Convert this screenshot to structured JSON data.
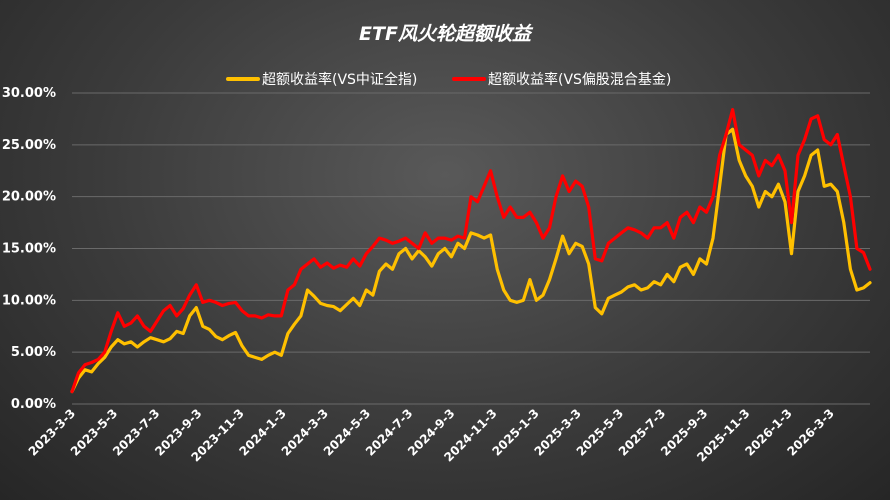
{
  "chart_data": {
    "type": "line",
    "title": "ETF风火轮超额收益",
    "xlabel": "",
    "ylabel": "",
    "ylim": [
      0,
      0.3
    ],
    "y_ticks": [
      "0.00%",
      "5.00%",
      "10.00%",
      "15.00%",
      "20.00%",
      "25.00%",
      "30.00%"
    ],
    "x_ticks": [
      "2023-3-3",
      "2023-5-3",
      "2023-7-3",
      "2023-9-3",
      "2023-11-3",
      "2024-1-3",
      "2024-3-3",
      "2024-5-3",
      "2024-7-3",
      "2024-9-3",
      "2024-11-3",
      "2025-1-3",
      "2025-3-3",
      "2025-5-3",
      "2025-7-3",
      "2025-9-3",
      "2025-11-3",
      "2026-1-3",
      "2026-3-3"
    ],
    "grid": true,
    "legend_position": "top",
    "series": [
      {
        "name": "超额收益率(VS中证全指)",
        "color": "#FFC000",
        "points": [
          [
            0,
            0.012
          ],
          [
            1,
            0.025
          ],
          [
            2,
            0.033
          ],
          [
            3,
            0.031
          ],
          [
            4,
            0.039
          ],
          [
            5,
            0.045
          ],
          [
            6,
            0.055
          ],
          [
            7,
            0.062
          ],
          [
            8,
            0.058
          ],
          [
            9,
            0.06
          ],
          [
            10,
            0.055
          ],
          [
            11,
            0.06
          ],
          [
            12,
            0.064
          ],
          [
            13,
            0.062
          ],
          [
            14,
            0.06
          ],
          [
            15,
            0.063
          ],
          [
            16,
            0.07
          ],
          [
            17,
            0.068
          ],
          [
            18,
            0.085
          ],
          [
            19,
            0.093
          ],
          [
            20,
            0.075
          ],
          [
            21,
            0.072
          ],
          [
            22,
            0.065
          ],
          [
            23,
            0.062
          ],
          [
            24,
            0.066
          ],
          [
            25,
            0.069
          ],
          [
            26,
            0.056
          ],
          [
            27,
            0.047
          ],
          [
            28,
            0.045
          ],
          [
            29,
            0.043
          ],
          [
            30,
            0.047
          ],
          [
            31,
            0.05
          ],
          [
            32,
            0.047
          ],
          [
            33,
            0.068
          ],
          [
            34,
            0.077
          ],
          [
            35,
            0.085
          ],
          [
            36,
            0.11
          ],
          [
            37,
            0.104
          ],
          [
            38,
            0.097
          ],
          [
            39,
            0.095
          ],
          [
            40,
            0.094
          ],
          [
            41,
            0.09
          ],
          [
            42,
            0.096
          ],
          [
            43,
            0.102
          ],
          [
            44,
            0.095
          ],
          [
            45,
            0.11
          ],
          [
            46,
            0.105
          ],
          [
            47,
            0.128
          ],
          [
            48,
            0.135
          ],
          [
            49,
            0.13
          ],
          [
            50,
            0.145
          ],
          [
            51,
            0.15
          ],
          [
            52,
            0.14
          ],
          [
            53,
            0.148
          ],
          [
            54,
            0.142
          ],
          [
            55,
            0.133
          ],
          [
            56,
            0.145
          ],
          [
            57,
            0.15
          ],
          [
            58,
            0.142
          ],
          [
            59,
            0.155
          ],
          [
            60,
            0.15
          ],
          [
            61,
            0.165
          ],
          [
            62,
            0.163
          ],
          [
            63,
            0.16
          ],
          [
            64,
            0.163
          ],
          [
            65,
            0.13
          ],
          [
            66,
            0.11
          ],
          [
            67,
            0.1
          ],
          [
            68,
            0.098
          ],
          [
            69,
            0.1
          ],
          [
            70,
            0.12
          ],
          [
            71,
            0.1
          ],
          [
            72,
            0.105
          ],
          [
            73,
            0.12
          ],
          [
            74,
            0.14
          ],
          [
            75,
            0.162
          ],
          [
            76,
            0.145
          ],
          [
            77,
            0.155
          ],
          [
            78,
            0.152
          ],
          [
            79,
            0.135
          ],
          [
            80,
            0.093
          ],
          [
            81,
            0.087
          ],
          [
            82,
            0.102
          ],
          [
            83,
            0.105
          ],
          [
            84,
            0.108
          ],
          [
            85,
            0.113
          ],
          [
            86,
            0.115
          ],
          [
            87,
            0.11
          ],
          [
            88,
            0.112
          ],
          [
            89,
            0.118
          ],
          [
            90,
            0.115
          ],
          [
            91,
            0.125
          ],
          [
            92,
            0.118
          ],
          [
            93,
            0.132
          ],
          [
            94,
            0.135
          ],
          [
            95,
            0.125
          ],
          [
            96,
            0.14
          ],
          [
            97,
            0.135
          ],
          [
            98,
            0.16
          ],
          [
            99,
            0.21
          ],
          [
            100,
            0.26
          ],
          [
            101,
            0.265
          ],
          [
            102,
            0.235
          ],
          [
            103,
            0.22
          ],
          [
            104,
            0.21
          ],
          [
            105,
            0.19
          ],
          [
            106,
            0.205
          ],
          [
            107,
            0.2
          ],
          [
            108,
            0.212
          ],
          [
            109,
            0.195
          ],
          [
            110,
            0.145
          ],
          [
            111,
            0.205
          ],
          [
            112,
            0.22
          ],
          [
            113,
            0.24
          ],
          [
            114,
            0.245
          ],
          [
            115,
            0.21
          ],
          [
            116,
            0.212
          ],
          [
            117,
            0.205
          ],
          [
            118,
            0.175
          ],
          [
            119,
            0.13
          ],
          [
            120,
            0.11
          ],
          [
            121,
            0.112
          ],
          [
            122,
            0.117
          ]
        ]
      },
      {
        "name": "超额收益率(VS偏股混合基金)",
        "color": "#FF0000",
        "points": [
          [
            0,
            0.012
          ],
          [
            1,
            0.03
          ],
          [
            2,
            0.038
          ],
          [
            3,
            0.04
          ],
          [
            4,
            0.043
          ],
          [
            5,
            0.05
          ],
          [
            6,
            0.07
          ],
          [
            7,
            0.088
          ],
          [
            8,
            0.075
          ],
          [
            9,
            0.078
          ],
          [
            10,
            0.085
          ],
          [
            11,
            0.075
          ],
          [
            12,
            0.07
          ],
          [
            13,
            0.08
          ],
          [
            14,
            0.09
          ],
          [
            15,
            0.095
          ],
          [
            16,
            0.085
          ],
          [
            17,
            0.092
          ],
          [
            18,
            0.105
          ],
          [
            19,
            0.115
          ],
          [
            20,
            0.098
          ],
          [
            21,
            0.1
          ],
          [
            22,
            0.098
          ],
          [
            23,
            0.095
          ],
          [
            24,
            0.097
          ],
          [
            25,
            0.098
          ],
          [
            26,
            0.09
          ],
          [
            27,
            0.085
          ],
          [
            28,
            0.085
          ],
          [
            29,
            0.083
          ],
          [
            30,
            0.086
          ],
          [
            31,
            0.085
          ],
          [
            32,
            0.085
          ],
          [
            33,
            0.11
          ],
          [
            34,
            0.115
          ],
          [
            35,
            0.13
          ],
          [
            36,
            0.135
          ],
          [
            37,
            0.14
          ],
          [
            38,
            0.132
          ],
          [
            39,
            0.136
          ],
          [
            40,
            0.131
          ],
          [
            41,
            0.134
          ],
          [
            42,
            0.132
          ],
          [
            43,
            0.14
          ],
          [
            44,
            0.133
          ],
          [
            45,
            0.145
          ],
          [
            46,
            0.152
          ],
          [
            47,
            0.16
          ],
          [
            48,
            0.158
          ],
          [
            49,
            0.155
          ],
          [
            50,
            0.157
          ],
          [
            51,
            0.16
          ],
          [
            52,
            0.155
          ],
          [
            53,
            0.15
          ],
          [
            54,
            0.165
          ],
          [
            55,
            0.155
          ],
          [
            56,
            0.16
          ],
          [
            57,
            0.16
          ],
          [
            58,
            0.158
          ],
          [
            59,
            0.162
          ],
          [
            60,
            0.16
          ],
          [
            61,
            0.2
          ],
          [
            62,
            0.195
          ],
          [
            63,
            0.21
          ],
          [
            64,
            0.225
          ],
          [
            65,
            0.2
          ],
          [
            66,
            0.18
          ],
          [
            67,
            0.19
          ],
          [
            68,
            0.18
          ],
          [
            69,
            0.18
          ],
          [
            70,
            0.185
          ],
          [
            71,
            0.175
          ],
          [
            72,
            0.16
          ],
          [
            73,
            0.17
          ],
          [
            74,
            0.2
          ],
          [
            75,
            0.22
          ],
          [
            76,
            0.205
          ],
          [
            77,
            0.215
          ],
          [
            78,
            0.21
          ],
          [
            79,
            0.19
          ],
          [
            80,
            0.14
          ],
          [
            81,
            0.138
          ],
          [
            82,
            0.155
          ],
          [
            83,
            0.16
          ],
          [
            84,
            0.165
          ],
          [
            85,
            0.17
          ],
          [
            86,
            0.168
          ],
          [
            87,
            0.165
          ],
          [
            88,
            0.16
          ],
          [
            89,
            0.17
          ],
          [
            90,
            0.17
          ],
          [
            91,
            0.175
          ],
          [
            92,
            0.16
          ],
          [
            93,
            0.18
          ],
          [
            94,
            0.185
          ],
          [
            95,
            0.175
          ],
          [
            96,
            0.19
          ],
          [
            97,
            0.185
          ],
          [
            98,
            0.2
          ],
          [
            99,
            0.24
          ],
          [
            100,
            0.26
          ],
          [
            101,
            0.284
          ],
          [
            102,
            0.25
          ],
          [
            103,
            0.245
          ],
          [
            104,
            0.24
          ],
          [
            105,
            0.22
          ],
          [
            106,
            0.235
          ],
          [
            107,
            0.23
          ],
          [
            108,
            0.24
          ],
          [
            109,
            0.225
          ],
          [
            110,
            0.175
          ],
          [
            111,
            0.24
          ],
          [
            112,
            0.255
          ],
          [
            113,
            0.275
          ],
          [
            114,
            0.278
          ],
          [
            115,
            0.255
          ],
          [
            116,
            0.25
          ],
          [
            117,
            0.26
          ],
          [
            118,
            0.23
          ],
          [
            119,
            0.2
          ],
          [
            120,
            0.15
          ],
          [
            121,
            0.146
          ],
          [
            122,
            0.13
          ]
        ]
      }
    ]
  }
}
